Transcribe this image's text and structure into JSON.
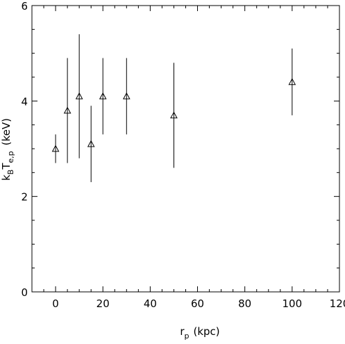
{
  "chart_data": {
    "type": "scatter",
    "title": "",
    "xlabel": {
      "main": "r",
      "sub": "p",
      "unit": "(kpc)"
    },
    "ylabel": {
      "k": "k",
      "k_sub": "B",
      "t": "T",
      "t_sub": "e,p",
      "unit": "(keV)"
    },
    "xlim": [
      -10,
      120
    ],
    "ylim": [
      0,
      6
    ],
    "x_ticks": [
      0,
      20,
      40,
      60,
      80,
      100,
      120
    ],
    "y_ticks": [
      0,
      2,
      4,
      6
    ],
    "x_tick_labels": [
      "0",
      "20",
      "40",
      "60",
      "80",
      "100",
      "120"
    ],
    "y_tick_labels": [
      "0",
      "2",
      "4",
      "6"
    ],
    "marker": "open-triangle",
    "grid": false,
    "series": [
      {
        "points": [
          {
            "x": 0,
            "y": 3.0,
            "y_low": 2.7,
            "y_high": 3.3
          },
          {
            "x": 5,
            "y": 3.8,
            "y_low": 2.7,
            "y_high": 4.9
          },
          {
            "x": 10,
            "y": 4.1,
            "y_low": 2.8,
            "y_high": 5.4
          },
          {
            "x": 15,
            "y": 3.1,
            "y_low": 2.3,
            "y_high": 3.9
          },
          {
            "x": 20,
            "y": 4.1,
            "y_low": 3.3,
            "y_high": 4.9
          },
          {
            "x": 30,
            "y": 4.1,
            "y_low": 3.3,
            "y_high": 4.9
          },
          {
            "x": 50,
            "y": 3.7,
            "y_low": 2.6,
            "y_high": 4.8
          },
          {
            "x": 100,
            "y": 4.4,
            "y_low": 3.7,
            "y_high": 5.1
          }
        ]
      }
    ]
  }
}
